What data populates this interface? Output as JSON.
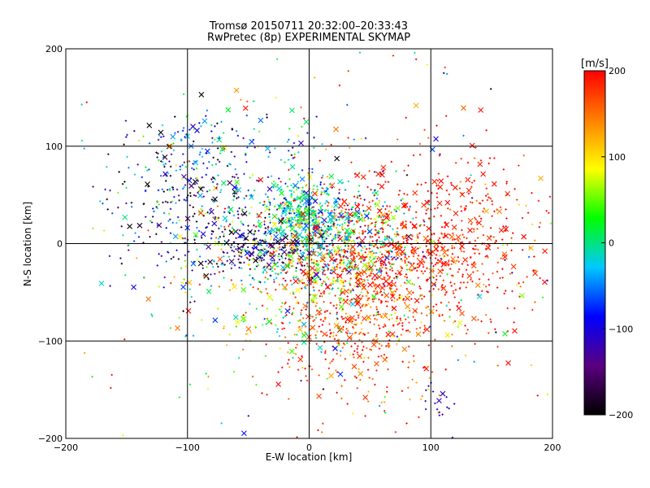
{
  "chart_data": {
    "type": "scatter",
    "title": "Tromsø 20150711 20:32:00–20:33:43",
    "subtitle": "RwPretec (8p) EXPERIMENTAL SKYMAP",
    "xlabel": "E-W location [km]",
    "ylabel": "N-S location [km]",
    "xlim": [
      -200,
      200
    ],
    "ylim": [
      -200,
      200
    ],
    "xticks": [
      -200,
      -100,
      0,
      100,
      200
    ],
    "yticks": [
      -200,
      -100,
      0,
      100,
      200
    ],
    "grid": true,
    "markers": [
      "plus",
      "cross"
    ],
    "colorbar": {
      "label": "[m/s]",
      "min": -200,
      "max": 200,
      "ticks": [
        200,
        100,
        0,
        -100,
        -200
      ],
      "placement": "right",
      "colors": [
        "#000000",
        "#5a0080",
        "#0000ff",
        "#00c8ff",
        "#00ff00",
        "#ffff00",
        "#ff8000",
        "#ff0000"
      ]
    },
    "clusters": [
      {
        "cx": 10,
        "cy": 5,
        "sx": 35,
        "sy": 25,
        "n": 700,
        "v": 0,
        "vs": 70
      },
      {
        "cx": -5,
        "cy": 35,
        "sx": 12,
        "sy": 15,
        "n": 200,
        "v": -10,
        "vs": 40
      },
      {
        "cx": -40,
        "cy": -5,
        "sx": 25,
        "sy": 12,
        "n": 180,
        "v": -150,
        "vs": 40
      },
      {
        "cx": -100,
        "cy": 40,
        "sx": 30,
        "sy": 40,
        "n": 250,
        "v": -120,
        "vs": 80
      },
      {
        "cx": -70,
        "cy": 80,
        "sx": 40,
        "sy": 40,
        "n": 200,
        "v": -60,
        "vs": 90
      },
      {
        "cx": 80,
        "cy": -10,
        "sx": 50,
        "sy": 40,
        "n": 700,
        "v": 190,
        "vs": 20
      },
      {
        "cx": 40,
        "cy": -70,
        "sx": 40,
        "sy": 50,
        "n": 550,
        "v": 175,
        "vs": 40
      },
      {
        "cx": 140,
        "cy": 20,
        "sx": 40,
        "sy": 40,
        "n": 150,
        "v": 185,
        "vs": 30
      },
      {
        "cx": 0,
        "cy": -40,
        "sx": 60,
        "sy": 40,
        "n": 300,
        "v": 60,
        "vs": 70
      },
      {
        "cx": 100,
        "cy": -165,
        "sx": 12,
        "sy": 12,
        "n": 18,
        "v": -110,
        "vs": 10
      },
      {
        "cx": 0,
        "cy": 0,
        "sx": 110,
        "sy": 110,
        "n": 300,
        "v": 50,
        "vs": 130
      }
    ]
  }
}
